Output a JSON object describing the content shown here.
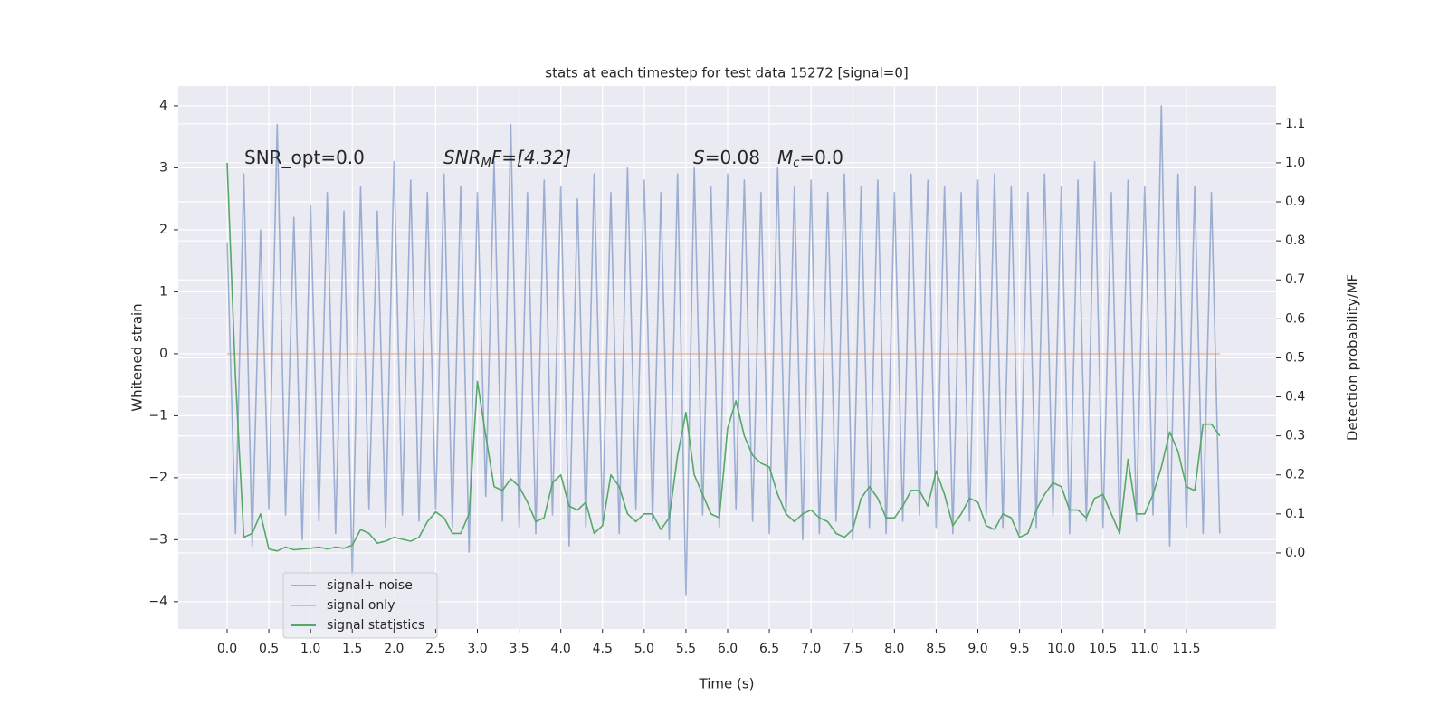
{
  "chart_data": {
    "type": "line",
    "title": "stats at each timestep for test data 15272 [signal=0]",
    "xlabel": "Time (s)",
    "ylabel": "Whitened strain",
    "y2label": "Detection probability/MF",
    "annotations": [
      [
        "SNR_opt=0.0"
      ],
      [
        "SNR",
        "M",
        "F=[4.32]"
      ],
      [
        "S",
        "=0.08"
      ],
      [
        "M",
        "c",
        "=0.0"
      ]
    ],
    "x": [
      0.0,
      0.1,
      0.2,
      0.3,
      0.4,
      0.5,
      0.6,
      0.7,
      0.8,
      0.9,
      1.0,
      1.1,
      1.2,
      1.3,
      1.4,
      1.5,
      1.6,
      1.7,
      1.8,
      1.9,
      2.0,
      2.1,
      2.2,
      2.3,
      2.4,
      2.5,
      2.6,
      2.7,
      2.8,
      2.9,
      3.0,
      3.1,
      3.2,
      3.3,
      3.4,
      3.5,
      3.6,
      3.7,
      3.8,
      3.9,
      4.0,
      4.1,
      4.2,
      4.3,
      4.4,
      4.5,
      4.6,
      4.7,
      4.8,
      4.9,
      5.0,
      5.1,
      5.2,
      5.3,
      5.4,
      5.5,
      5.6,
      5.7,
      5.8,
      5.9,
      6.0,
      6.1,
      6.2,
      6.3,
      6.4,
      6.5,
      6.6,
      6.7,
      6.8,
      6.9,
      7.0,
      7.1,
      7.2,
      7.3,
      7.4,
      7.5,
      7.6,
      7.7,
      7.8,
      7.9,
      8.0,
      8.1,
      8.2,
      8.3,
      8.4,
      8.5,
      8.6,
      8.7,
      8.8,
      8.9,
      9.0,
      9.1,
      9.2,
      9.3,
      9.4,
      9.5,
      9.6,
      9.7,
      9.8,
      9.9,
      10.0,
      10.1,
      10.2,
      10.3,
      10.4,
      10.5,
      10.6,
      10.7,
      10.8,
      10.9,
      11.0,
      11.1,
      11.2,
      11.3,
      11.4,
      11.5,
      11.6,
      11.7,
      11.8,
      11.9
    ],
    "series": [
      {
        "name": "signal+ noise",
        "color": "#4c72b0",
        "opacity": 0.5,
        "values": [
          1.8,
          -2.9,
          2.9,
          -3.1,
          2.0,
          -2.5,
          3.7,
          -2.6,
          2.2,
          -3.0,
          2.4,
          -2.7,
          2.6,
          -2.9,
          2.3,
          -3.6,
          2.7,
          -2.5,
          2.3,
          -2.8,
          3.1,
          -2.6,
          2.8,
          -2.7,
          2.6,
          -2.5,
          2.9,
          -2.8,
          2.7,
          -3.2,
          2.6,
          -2.3,
          3.1,
          -2.7,
          3.7,
          -2.8,
          2.6,
          -2.9,
          2.8,
          -2.6,
          2.7,
          -3.1,
          2.5,
          -2.8,
          2.9,
          -2.7,
          2.6,
          -2.9,
          3.0,
          -2.5,
          2.8,
          -2.7,
          2.6,
          -3.0,
          2.9,
          -3.9,
          3.0,
          -2.6,
          2.7,
          -2.8,
          2.9,
          -2.5,
          2.8,
          -2.7,
          2.6,
          -2.9,
          3.0,
          -2.6,
          2.7,
          -3.0,
          2.8,
          -2.9,
          2.6,
          -2.7,
          2.9,
          -3.0,
          2.7,
          -2.8,
          2.8,
          -2.9,
          2.6,
          -2.7,
          2.9,
          -2.6,
          2.8,
          -2.8,
          2.7,
          -2.9,
          2.6,
          -2.7,
          2.8,
          -2.6,
          2.9,
          -2.8,
          2.7,
          -2.9,
          2.6,
          -2.8,
          2.9,
          -2.6,
          2.7,
          -2.9,
          2.8,
          -2.7,
          3.1,
          -2.8,
          2.6,
          -2.9,
          2.8,
          -2.7,
          2.7,
          -2.6,
          4.0,
          -3.1,
          2.9,
          -2.8,
          2.7,
          -2.9,
          2.6,
          -2.9
        ]
      },
      {
        "name": "signal only",
        "color": "#dd8452",
        "opacity": 0.5,
        "x": [
          0.0,
          11.9
        ],
        "values": [
          0,
          0
        ]
      },
      {
        "name": "signal statistics",
        "color": "#55a868",
        "opacity": 1,
        "axis": "y2",
        "values": [
          1.0,
          0.45,
          0.04,
          0.05,
          0.1,
          0.01,
          0.005,
          0.015,
          0.008,
          0.01,
          0.012,
          0.015,
          0.01,
          0.015,
          0.012,
          0.02,
          0.06,
          0.05,
          0.025,
          0.03,
          0.04,
          0.035,
          0.03,
          0.04,
          0.08,
          0.105,
          0.09,
          0.05,
          0.05,
          0.1,
          0.44,
          0.3,
          0.17,
          0.16,
          0.19,
          0.17,
          0.13,
          0.08,
          0.09,
          0.18,
          0.2,
          0.12,
          0.11,
          0.13,
          0.05,
          0.07,
          0.2,
          0.17,
          0.1,
          0.08,
          0.1,
          0.1,
          0.06,
          0.09,
          0.25,
          0.36,
          0.2,
          0.15,
          0.1,
          0.09,
          0.32,
          0.39,
          0.3,
          0.25,
          0.23,
          0.22,
          0.15,
          0.1,
          0.08,
          0.1,
          0.11,
          0.09,
          0.08,
          0.05,
          0.04,
          0.06,
          0.14,
          0.17,
          0.14,
          0.09,
          0.09,
          0.12,
          0.16,
          0.16,
          0.12,
          0.21,
          0.15,
          0.07,
          0.1,
          0.14,
          0.13,
          0.07,
          0.06,
          0.1,
          0.09,
          0.04,
          0.05,
          0.11,
          0.15,
          0.18,
          0.17,
          0.11,
          0.11,
          0.09,
          0.14,
          0.15,
          0.1,
          0.05,
          0.24,
          0.1,
          0.1,
          0.15,
          0.22,
          0.31,
          0.26,
          0.17,
          0.16,
          0.33,
          0.33,
          0.3
        ]
      }
    ],
    "xlim": [
      -0.586,
      12.575
    ],
    "ylim": [
      -4.44,
      4.32
    ],
    "y2lim": [
      -0.195,
      1.197
    ],
    "xticks": [
      {
        "value": 0,
        "label": "0.0"
      },
      0.5,
      {
        "value": 1,
        "label": "1.0"
      },
      1.5,
      {
        "value": 2,
        "label": "2.0"
      },
      2.5,
      {
        "value": 3,
        "label": "3.0"
      },
      3.5,
      {
        "value": 4,
        "label": "4.0"
      },
      4.5,
      {
        "value": 5,
        "label": "5.0"
      },
      5.5,
      {
        "value": 6,
        "label": "6.0"
      },
      6.5,
      {
        "value": 7,
        "label": "7.0"
      },
      7.5,
      {
        "value": 8,
        "label": "8.0"
      },
      8.5,
      {
        "value": 9,
        "label": "9.0"
      },
      9.5,
      {
        "value": 10,
        "label": "10.0"
      },
      10.5,
      {
        "value": 11,
        "label": "11.0"
      },
      11.5
    ],
    "yticks": [
      {
        "value": -4,
        "label": "−4"
      },
      {
        "value": -3,
        "label": "−3"
      },
      {
        "value": -2,
        "label": "−2"
      },
      {
        "value": -1,
        "label": "−1"
      },
      0,
      1,
      2,
      3,
      4
    ],
    "y2ticks": [
      {
        "value": 0,
        "label": "0.0"
      },
      0.1,
      0.2,
      0.3,
      0.4,
      0.5,
      0.6,
      0.7,
      0.8,
      0.9,
      {
        "value": 1,
        "label": "1.0"
      },
      1.1
    ],
    "grid": true,
    "legend": "lower left"
  }
}
